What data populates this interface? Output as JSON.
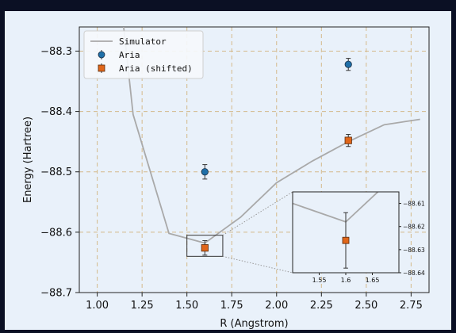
{
  "colors": {
    "background": "#0b1024",
    "panel": "#e9f1fa",
    "simulator": "#a9a9a9",
    "aria": "#1f6fa8",
    "aria_shifted": "#e0661a",
    "grid": "#d4b98a"
  },
  "chart_data": {
    "type": "line",
    "xlabel": "R (Angstrom)",
    "ylabel": "Energy (Hartree)",
    "xlim": [
      0.9,
      2.85
    ],
    "ylim": [
      -88.7,
      -88.26
    ],
    "xticks": [
      "1.00",
      "1.25",
      "1.50",
      "1.75",
      "2.00",
      "2.25",
      "2.50",
      "2.75"
    ],
    "xtick_values": [
      1.0,
      1.25,
      1.5,
      1.75,
      2.0,
      2.25,
      2.5,
      2.75
    ],
    "yticks": [
      "−88.3",
      "−88.4",
      "−88.5",
      "−88.6",
      "−88.7"
    ],
    "ytick_values": [
      -88.3,
      -88.4,
      -88.5,
      -88.6,
      -88.7
    ],
    "grid": true,
    "legend_position": "top-left",
    "series": [
      {
        "name": "Simulator",
        "style": "line",
        "x": [
          1.1,
          1.2,
          1.4,
          1.6,
          1.8,
          2.0,
          2.2,
          2.4,
          2.6,
          2.8
        ],
        "y": [
          -88.13,
          -88.405,
          -88.602,
          -88.618,
          -88.575,
          -88.518,
          -88.482,
          -88.45,
          -88.422,
          -88.413
        ]
      },
      {
        "name": "Aria",
        "style": "errorbar-circle",
        "x": [
          1.6,
          2.4
        ],
        "y": [
          -88.5,
          -88.322
        ],
        "err": [
          0.012,
          0.01
        ]
      },
      {
        "name": "Aria (shifted)",
        "style": "errorbar-square",
        "x": [
          1.6,
          2.4
        ],
        "y": [
          -88.626,
          -88.448
        ],
        "err": [
          0.012,
          0.01
        ]
      }
    ],
    "inset": {
      "xlim": [
        1.5,
        1.7
      ],
      "ylim": [
        -88.64,
        -88.605
      ],
      "xticks": [
        "1.55",
        "1.6",
        "1.65"
      ],
      "xtick_values": [
        1.55,
        1.6,
        1.65
      ],
      "yticks": [
        "−88.61",
        "−88.62",
        "−88.63",
        "−88.64"
      ],
      "ytick_values": [
        -88.61,
        -88.62,
        -88.63,
        -88.64
      ],
      "zoom_region": {
        "x": [
          1.5,
          1.7
        ],
        "y": [
          -88.64,
          -88.605
        ]
      }
    }
  }
}
